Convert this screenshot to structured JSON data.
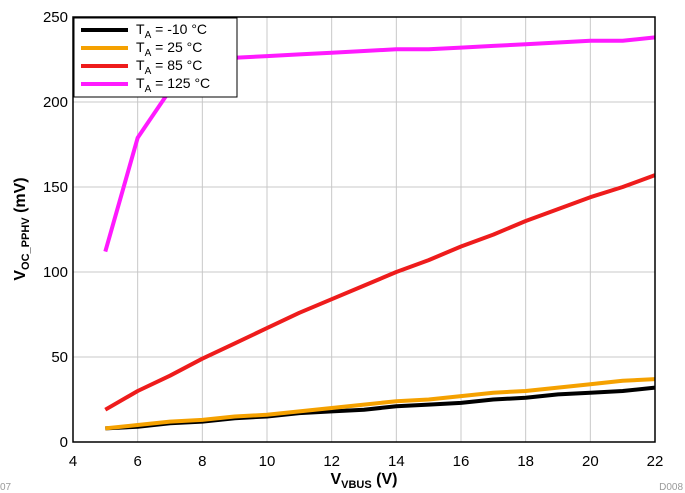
{
  "chart_data": {
    "type": "line",
    "xlabel": {
      "main": "V",
      "sub": "VBUS",
      "unit": " (V)"
    },
    "ylabel": {
      "main": "V",
      "sub": "OC_PPHV",
      "unit": " (mV)"
    },
    "xlim": [
      4,
      22
    ],
    "ylim": [
      0,
      250
    ],
    "x_ticks": [
      4,
      6,
      8,
      10,
      12,
      14,
      16,
      18,
      20,
      22
    ],
    "y_ticks": [
      0,
      50,
      100,
      150,
      200,
      250
    ],
    "grid": true,
    "legend_position": "top-left",
    "figure_id": "D008",
    "left_cut_text": "07",
    "series": [
      {
        "name": {
          "pre": "T",
          "sub": "A",
          "post": " = -10 °C"
        },
        "color": "#000000",
        "x": [
          5,
          6,
          7,
          8,
          9,
          10,
          11,
          12,
          13,
          14,
          15,
          16,
          17,
          18,
          19,
          20,
          21,
          22
        ],
        "values": [
          8,
          9,
          11,
          12,
          14,
          15,
          17,
          18,
          19,
          21,
          22,
          23,
          25,
          26,
          28,
          29,
          30,
          32
        ]
      },
      {
        "name": {
          "pre": "T",
          "sub": "A",
          "post": " = 25 °C"
        },
        "color": "#f5a100",
        "x": [
          5,
          6,
          7,
          8,
          9,
          10,
          11,
          12,
          13,
          14,
          15,
          16,
          17,
          18,
          19,
          20,
          21,
          22
        ],
        "values": [
          8,
          10,
          12,
          13,
          15,
          16,
          18,
          20,
          22,
          24,
          25,
          27,
          29,
          30,
          32,
          34,
          36,
          37
        ]
      },
      {
        "name": {
          "pre": "T",
          "sub": "A",
          "post": " = 85 °C"
        },
        "color": "#ee1c1c",
        "x": [
          5,
          6,
          7,
          8,
          9,
          10,
          11,
          12,
          13,
          14,
          15,
          16,
          17,
          18,
          19,
          20,
          21,
          22
        ],
        "values": [
          19,
          30,
          39,
          49,
          58,
          67,
          76,
          84,
          92,
          100,
          107,
          115,
          122,
          130,
          137,
          144,
          150,
          157
        ]
      },
      {
        "name": {
          "pre": "T",
          "sub": "A",
          "post": " = 125 °C"
        },
        "color": "#ff1aff",
        "x": [
          5,
          6,
          7,
          8,
          9,
          10,
          11,
          12,
          13,
          14,
          15,
          16,
          17,
          18,
          19,
          20,
          21,
          22
        ],
        "values": [
          112,
          179,
          207,
          224,
          226,
          227,
          228,
          229,
          230,
          231,
          231,
          232,
          233,
          234,
          235,
          236,
          236,
          238
        ]
      }
    ]
  }
}
